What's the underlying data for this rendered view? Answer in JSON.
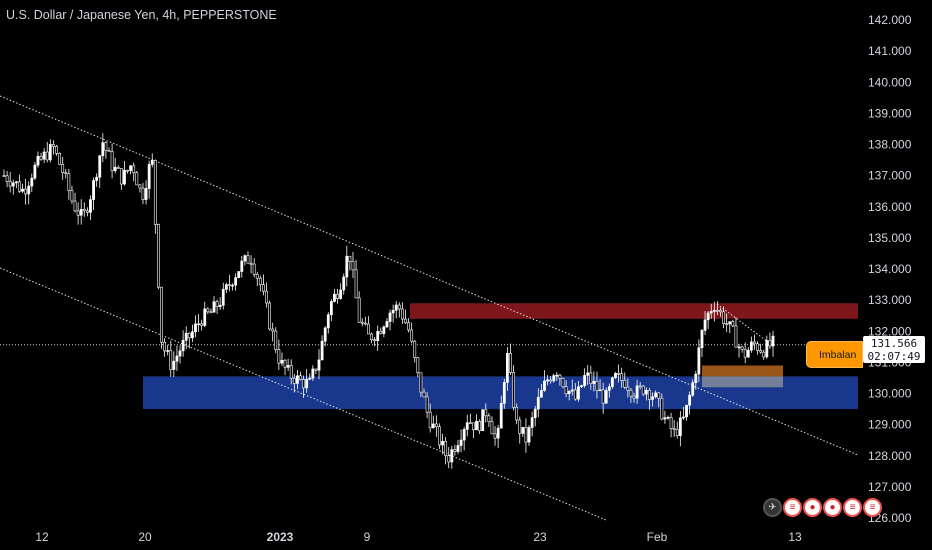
{
  "header": {
    "title": "U.S. Dollar / Japanese Yen, 4h, PEPPERSTONE"
  },
  "price_tag": {
    "price": "131.566",
    "countdown": "02:07:49"
  },
  "imbalance_tag": {
    "label": "Imbalan"
  },
  "event_icons": [
    "rocket-icon",
    "us-flag-icon",
    "jp-flag-icon",
    "us-flag-icon"
  ],
  "colors": {
    "up": "#ffffff",
    "down": "#ffffff",
    "supply": "#8b1a1f",
    "demand": "#1c3e9c",
    "imbalance": "#b5651d",
    "accent": "#ff9800"
  },
  "chart_data": {
    "type": "candlestick",
    "title": "U.S. Dollar / Japanese Yen, 4h, PEPPERSTONE",
    "ylim": [
      126,
      142
    ],
    "y_ticks": [
      "142.000",
      "141.000",
      "140.000",
      "139.000",
      "138.000",
      "137.000",
      "136.000",
      "135.000",
      "134.000",
      "133.000",
      "132.000",
      "131.000",
      "130.000",
      "129.000",
      "128.000",
      "127.000",
      "126.000"
    ],
    "x_ticks": [
      "12",
      "20",
      "2023",
      "9",
      "23",
      "Feb",
      "13"
    ],
    "current_price": 131.566,
    "zones": [
      {
        "name": "supply",
        "low": 132.4,
        "high": 132.9
      },
      {
        "name": "demand",
        "low": 129.5,
        "high": 130.55
      },
      {
        "name": "imbalance",
        "low": 130.55,
        "high": 130.9
      }
    ],
    "close_path": [
      137.0,
      136.8,
      136.5,
      137.2,
      137.6,
      137.9,
      137.1,
      136.1,
      135.6,
      136.6,
      138.1,
      137.3,
      136.9,
      137.4,
      136.3,
      137.6,
      131.6,
      130.9,
      131.5,
      131.9,
      132.4,
      132.6,
      133.0,
      133.6,
      134.1,
      134.4,
      133.5,
      132.2,
      131.0,
      130.6,
      130.4,
      130.3,
      131.2,
      132.8,
      133.4,
      134.6,
      132.4,
      131.8,
      132.0,
      132.6,
      132.8,
      132.1,
      130.5,
      129.3,
      128.6,
      127.9,
      128.5,
      129.2,
      128.9,
      129.5,
      128.3,
      131.3,
      129.0,
      128.5,
      129.6,
      130.4,
      130.8,
      130.2,
      129.8,
      130.6,
      130.2,
      129.8,
      130.5,
      130.4,
      130.0,
      130.2,
      129.9,
      129.2,
      128.7,
      129.2,
      130.5,
      132.3,
      132.9,
      132.4,
      131.9,
      131.2,
      131.6,
      131.4,
      131.6
    ]
  }
}
